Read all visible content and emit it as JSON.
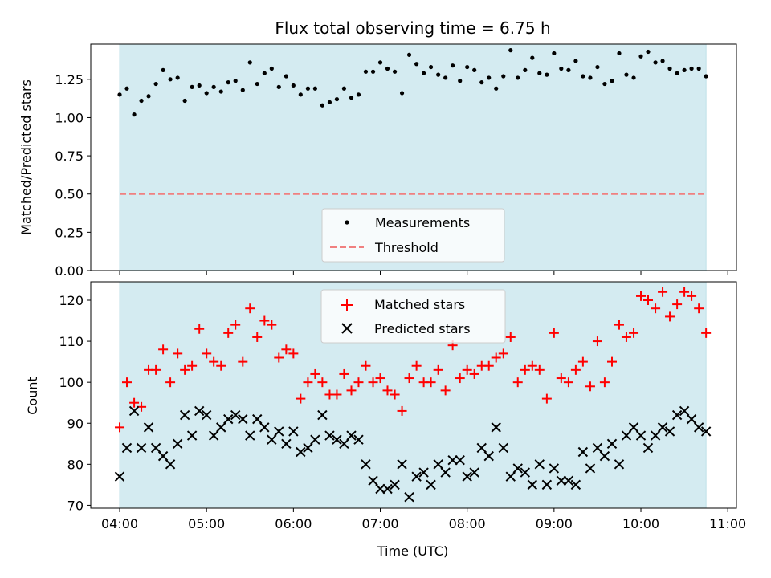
{
  "colors": {
    "shade": "#d4ebf1",
    "shade_edge": "#bfe0e8",
    "measure": "#000000",
    "threshold": "#f08080",
    "matched": "#ff0000",
    "predicted": "#000000"
  },
  "chart_data": [
    {
      "type": "scatter",
      "title": "Flux total observing time = 6.75 h",
      "xlabel": "",
      "ylabel": "Matched/Predicted stars",
      "ylim": [
        0,
        1.48
      ],
      "yticks": [
        0.0,
        0.25,
        0.5,
        0.75,
        1.0,
        1.25
      ],
      "ytick_labels": [
        "0.00",
        "0.25",
        "0.50",
        "0.75",
        "1.00",
        "1.25"
      ],
      "xlim_hours": [
        3.667,
        11.1
      ],
      "shaded_span_hours": [
        4.0,
        10.75
      ],
      "threshold": 0.5,
      "legend": {
        "placement": "lower-center",
        "entries": [
          "Measurements",
          "Threshold"
        ]
      },
      "series": [
        {
          "name": "Measurements",
          "x": [
            4.0,
            4.083,
            4.167,
            4.25,
            4.333,
            4.417,
            4.5,
            4.583,
            4.667,
            4.75,
            4.833,
            4.917,
            5.0,
            5.083,
            5.167,
            5.25,
            5.333,
            5.417,
            5.5,
            5.583,
            5.667,
            5.75,
            5.833,
            5.917,
            6.0,
            6.083,
            6.167,
            6.25,
            6.333,
            6.417,
            6.5,
            6.583,
            6.667,
            6.75,
            6.833,
            6.917,
            7.0,
            7.083,
            7.167,
            7.25,
            7.333,
            7.417,
            7.5,
            7.583,
            7.667,
            7.75,
            7.833,
            7.917,
            8.0,
            8.083,
            8.167,
            8.25,
            8.333,
            8.417,
            8.5,
            8.583,
            8.667,
            8.75,
            8.833,
            8.917,
            9.0,
            9.083,
            9.167,
            9.25,
            9.333,
            9.417,
            9.5,
            9.583,
            9.667,
            9.75,
            9.833,
            9.917,
            10.0,
            10.083,
            10.167,
            10.25,
            10.333,
            10.417,
            10.5,
            10.583,
            10.667,
            10.75
          ],
          "y": [
            1.15,
            1.19,
            1.02,
            1.11,
            1.14,
            1.22,
            1.31,
            1.25,
            1.26,
            1.11,
            1.2,
            1.21,
            1.16,
            1.2,
            1.17,
            1.23,
            1.24,
            1.18,
            1.36,
            1.22,
            1.29,
            1.32,
            1.2,
            1.27,
            1.21,
            1.15,
            1.19,
            1.19,
            1.08,
            1.1,
            1.12,
            1.19,
            1.13,
            1.15,
            1.3,
            1.3,
            1.36,
            1.32,
            1.3,
            1.16,
            1.41,
            1.35,
            1.29,
            1.33,
            1.28,
            1.26,
            1.34,
            1.24,
            1.33,
            1.31,
            1.23,
            1.26,
            1.19,
            1.27,
            1.44,
            1.26,
            1.31,
            1.39,
            1.29,
            1.28,
            1.42,
            1.32,
            1.31,
            1.37,
            1.27,
            1.26,
            1.33,
            1.22,
            1.24,
            1.42,
            1.28,
            1.26,
            1.4,
            1.43,
            1.36,
            1.37,
            1.32,
            1.29,
            1.31,
            1.32,
            1.32,
            1.27
          ]
        }
      ]
    },
    {
      "type": "scatter",
      "title": "",
      "xlabel": "Time (UTC)",
      "ylabel": "Count",
      "ylim": [
        69.3,
        124.5
      ],
      "yticks": [
        70,
        80,
        90,
        100,
        110,
        120
      ],
      "ytick_labels": [
        "70",
        "80",
        "90",
        "100",
        "110",
        "120"
      ],
      "xlim_hours": [
        3.667,
        11.1
      ],
      "xticks_hours": [
        4,
        5,
        6,
        7,
        8,
        9,
        10,
        11
      ],
      "xtick_labels": [
        "04:00",
        "05:00",
        "06:00",
        "07:00",
        "08:00",
        "09:00",
        "10:00",
        "11:00"
      ],
      "shaded_span_hours": [
        4.0,
        10.75
      ],
      "legend": {
        "placement": "upper-center",
        "entries": [
          "Matched stars",
          "Predicted stars"
        ]
      },
      "series": [
        {
          "name": "Matched stars",
          "marker": "plus",
          "x": [
            4.0,
            4.083,
            4.167,
            4.25,
            4.333,
            4.417,
            4.5,
            4.583,
            4.667,
            4.75,
            4.833,
            4.917,
            5.0,
            5.083,
            5.167,
            5.25,
            5.333,
            5.417,
            5.5,
            5.583,
            5.667,
            5.75,
            5.833,
            5.917,
            6.0,
            6.083,
            6.167,
            6.25,
            6.333,
            6.417,
            6.5,
            6.583,
            6.667,
            6.75,
            6.833,
            6.917,
            7.0,
            7.083,
            7.167,
            7.25,
            7.333,
            7.417,
            7.5,
            7.583,
            7.667,
            7.75,
            7.833,
            7.917,
            8.0,
            8.083,
            8.167,
            8.25,
            8.333,
            8.417,
            8.5,
            8.583,
            8.667,
            8.75,
            8.833,
            8.917,
            9.0,
            9.083,
            9.167,
            9.25,
            9.333,
            9.417,
            9.5,
            9.583,
            9.667,
            9.75,
            9.833,
            9.917,
            10.0,
            10.083,
            10.167,
            10.25,
            10.333,
            10.417,
            10.5,
            10.583,
            10.667,
            10.75
          ],
          "y": [
            89,
            100,
            95,
            94,
            103,
            103,
            108,
            100,
            107,
            103,
            104,
            113,
            107,
            105,
            104,
            112,
            114,
            105,
            118,
            111,
            115,
            114,
            106,
            108,
            107,
            96,
            100,
            102,
            100,
            97,
            97,
            102,
            98,
            100,
            104,
            100,
            101,
            98,
            97,
            93,
            101,
            104,
            100,
            100,
            103,
            98,
            109,
            101,
            103,
            102,
            104,
            104,
            106,
            107,
            111,
            100,
            103,
            104,
            103,
            96,
            112,
            101,
            100,
            103,
            105,
            99,
            110,
            100,
            105,
            114,
            111,
            112,
            121,
            120,
            118,
            122,
            116,
            119,
            122,
            121,
            118,
            112
          ]
        },
        {
          "name": "Predicted stars",
          "marker": "x",
          "x": [
            4.0,
            4.083,
            4.167,
            4.25,
            4.333,
            4.417,
            4.5,
            4.583,
            4.667,
            4.75,
            4.833,
            4.917,
            5.0,
            5.083,
            5.167,
            5.25,
            5.333,
            5.417,
            5.5,
            5.583,
            5.667,
            5.75,
            5.833,
            5.917,
            6.0,
            6.083,
            6.167,
            6.25,
            6.333,
            6.417,
            6.5,
            6.583,
            6.667,
            6.75,
            6.833,
            6.917,
            7.0,
            7.083,
            7.167,
            7.25,
            7.333,
            7.417,
            7.5,
            7.583,
            7.667,
            7.75,
            7.833,
            7.917,
            8.0,
            8.083,
            8.167,
            8.25,
            8.333,
            8.417,
            8.5,
            8.583,
            8.667,
            8.75,
            8.833,
            8.917,
            9.0,
            9.083,
            9.167,
            9.25,
            9.333,
            9.417,
            9.5,
            9.583,
            9.667,
            9.75,
            9.833,
            9.917,
            10.0,
            10.083,
            10.167,
            10.25,
            10.333,
            10.417,
            10.5,
            10.583,
            10.667,
            10.75
          ],
          "y": [
            77,
            84,
            93,
            84,
            89,
            84,
            82,
            80,
            85,
            92,
            87,
            93,
            92,
            87,
            89,
            91,
            92,
            91,
            87,
            91,
            89,
            86,
            88,
            85,
            88,
            83,
            84,
            86,
            92,
            87,
            86,
            85,
            87,
            86,
            80,
            76,
            74,
            74,
            75,
            80,
            72,
            77,
            78,
            75,
            80,
            78,
            81,
            81,
            77,
            78,
            84,
            82,
            89,
            84,
            77,
            79,
            78,
            75,
            80,
            75,
            79,
            76,
            76,
            75,
            83,
            79,
            84,
            82,
            85,
            80,
            87,
            89,
            87,
            84,
            87,
            89,
            88,
            92,
            93,
            91,
            89,
            88
          ]
        }
      ]
    }
  ]
}
